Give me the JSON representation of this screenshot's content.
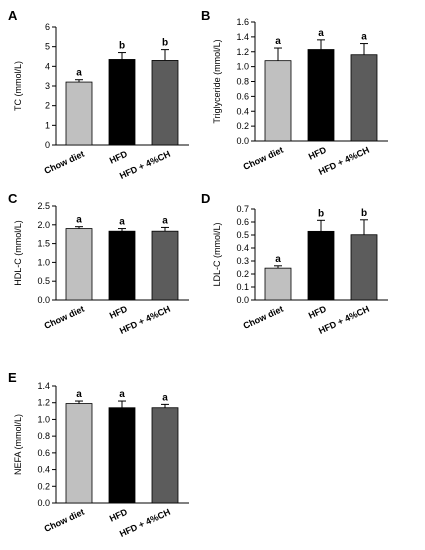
{
  "colors": {
    "chow_diet": "#c0c0c0",
    "hfd": "#000000",
    "hfd_4ch": "#5c5c5c",
    "axis": "#000000"
  },
  "chart_data": [
    {
      "panel": "A",
      "type": "bar",
      "ylabel": "TC (mmol/L)",
      "categories": [
        "Chow diet",
        "HFD",
        "HFD + 4%CH"
      ],
      "values": [
        3.2,
        4.35,
        4.3
      ],
      "errors": [
        0.12,
        0.35,
        0.55
      ],
      "letters": [
        "a",
        "b",
        "b"
      ],
      "ylim": [
        0,
        6
      ],
      "yticks": [
        "0",
        "1",
        "2",
        "3",
        "4",
        "5",
        "6"
      ],
      "ytick_values": [
        0,
        1,
        2,
        3,
        4,
        5,
        6
      ]
    },
    {
      "panel": "B",
      "type": "bar",
      "ylabel": "Triglyceride (mmol/L)",
      "categories": [
        "Chow diet",
        "HFD",
        "HFD + 4%CH"
      ],
      "values": [
        1.08,
        1.23,
        1.16
      ],
      "errors": [
        0.17,
        0.13,
        0.15
      ],
      "letters": [
        "a",
        "a",
        "a"
      ],
      "ylim": [
        0,
        1.6
      ],
      "yticks": [
        "0.0",
        "0.2",
        "0.4",
        "0.6",
        "0.8",
        "1.0",
        "1.2",
        "1.4",
        "1.6"
      ],
      "ytick_values": [
        0,
        0.2,
        0.4,
        0.6,
        0.8,
        1.0,
        1.2,
        1.4,
        1.6
      ]
    },
    {
      "panel": "C",
      "type": "bar",
      "ylabel": "HDL-C (mmol/L)",
      "categories": [
        "Chow diet",
        "HFD",
        "HFD + 4%CH"
      ],
      "values": [
        1.9,
        1.83,
        1.83
      ],
      "errors": [
        0.05,
        0.07,
        0.1
      ],
      "letters": [
        "a",
        "a",
        "a"
      ],
      "ylim": [
        0,
        2.5
      ],
      "yticks": [
        "0.0",
        "0.5",
        "1.0",
        "1.5",
        "2.0",
        "2.5"
      ],
      "ytick_values": [
        0,
        0.5,
        1.0,
        1.5,
        2.0,
        2.5
      ]
    },
    {
      "panel": "D",
      "type": "bar",
      "ylabel": "LDL-C (mmol/L)",
      "categories": [
        "Chow diet",
        "HFD",
        "HFD + 4%CH"
      ],
      "values": [
        0.245,
        0.528,
        0.502
      ],
      "errors": [
        0.018,
        0.085,
        0.115
      ],
      "letters": [
        "a",
        "b",
        "b"
      ],
      "ylim": [
        0,
        0.7
      ],
      "yticks": [
        "0.0",
        "0.1",
        "0.2",
        "0.3",
        "0.4",
        "0.5",
        "0.6",
        "0.7"
      ],
      "ytick_values": [
        0,
        0.1,
        0.2,
        0.3,
        0.4,
        0.5,
        0.6,
        0.7
      ]
    },
    {
      "panel": "E",
      "type": "bar",
      "ylabel": "NEFA (mmol/L)",
      "categories": [
        "Chow diet",
        "HFD",
        "HFD + 4%CH"
      ],
      "values": [
        1.19,
        1.14,
        1.14
      ],
      "errors": [
        0.03,
        0.08,
        0.04
      ],
      "letters": [
        "a",
        "a",
        "a"
      ],
      "ylim": [
        0,
        1.4
      ],
      "yticks": [
        "0.0",
        "0.2",
        "0.4",
        "0.6",
        "0.8",
        "1.0",
        "1.2",
        "1.4"
      ],
      "ytick_values": [
        0,
        0.2,
        0.4,
        0.6,
        0.8,
        1.0,
        1.2,
        1.4
      ]
    }
  ]
}
